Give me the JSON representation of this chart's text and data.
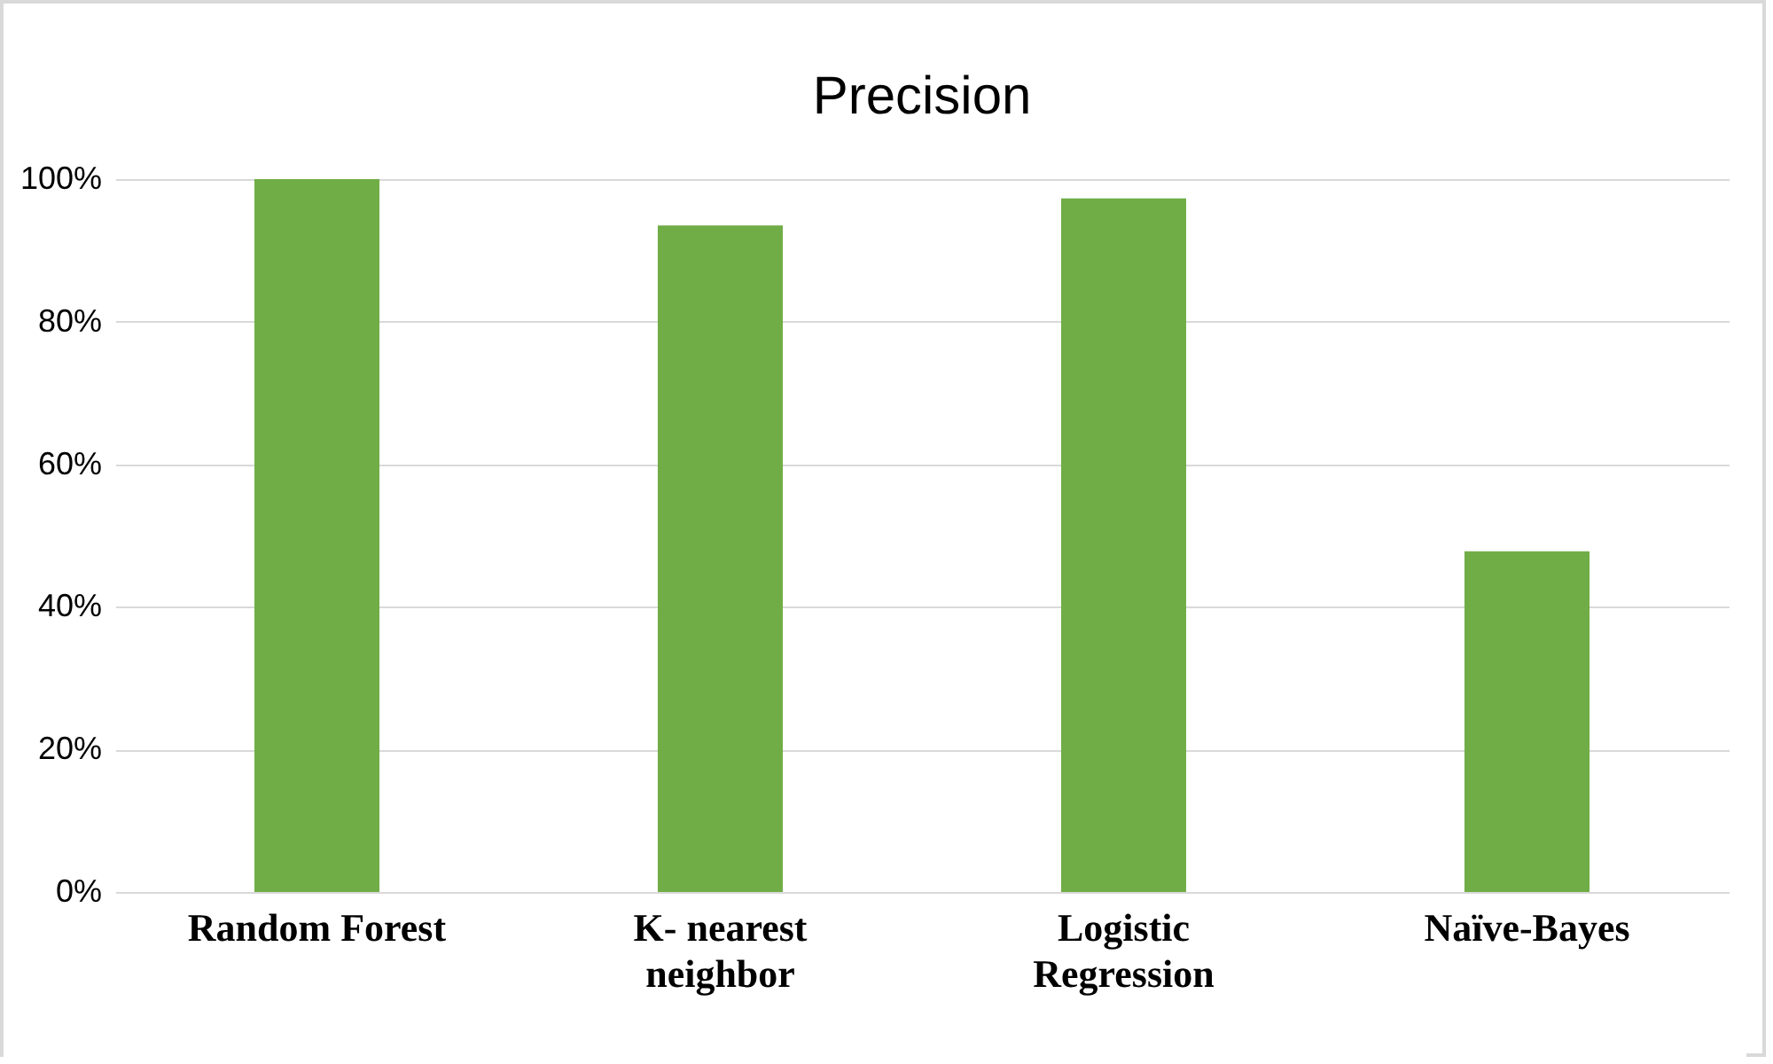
{
  "chart_data": {
    "type": "bar",
    "title": "Precision",
    "categories": [
      "Random Forest",
      "K- nearest neighbor",
      "Logistic Regression",
      "Naïve-Bayes"
    ],
    "values": [
      100,
      93.5,
      97.3,
      47.8
    ],
    "color": "#70ad47",
    "ylim": [
      0,
      100
    ],
    "yticks": [
      {
        "value": 0,
        "label": "0%"
      },
      {
        "value": 20,
        "label": "20%"
      },
      {
        "value": 40,
        "label": "40%"
      },
      {
        "value": 60,
        "label": "60%"
      },
      {
        "value": 80,
        "label": "80%"
      },
      {
        "value": 100,
        "label": "100%"
      }
    ],
    "grid": "y"
  }
}
